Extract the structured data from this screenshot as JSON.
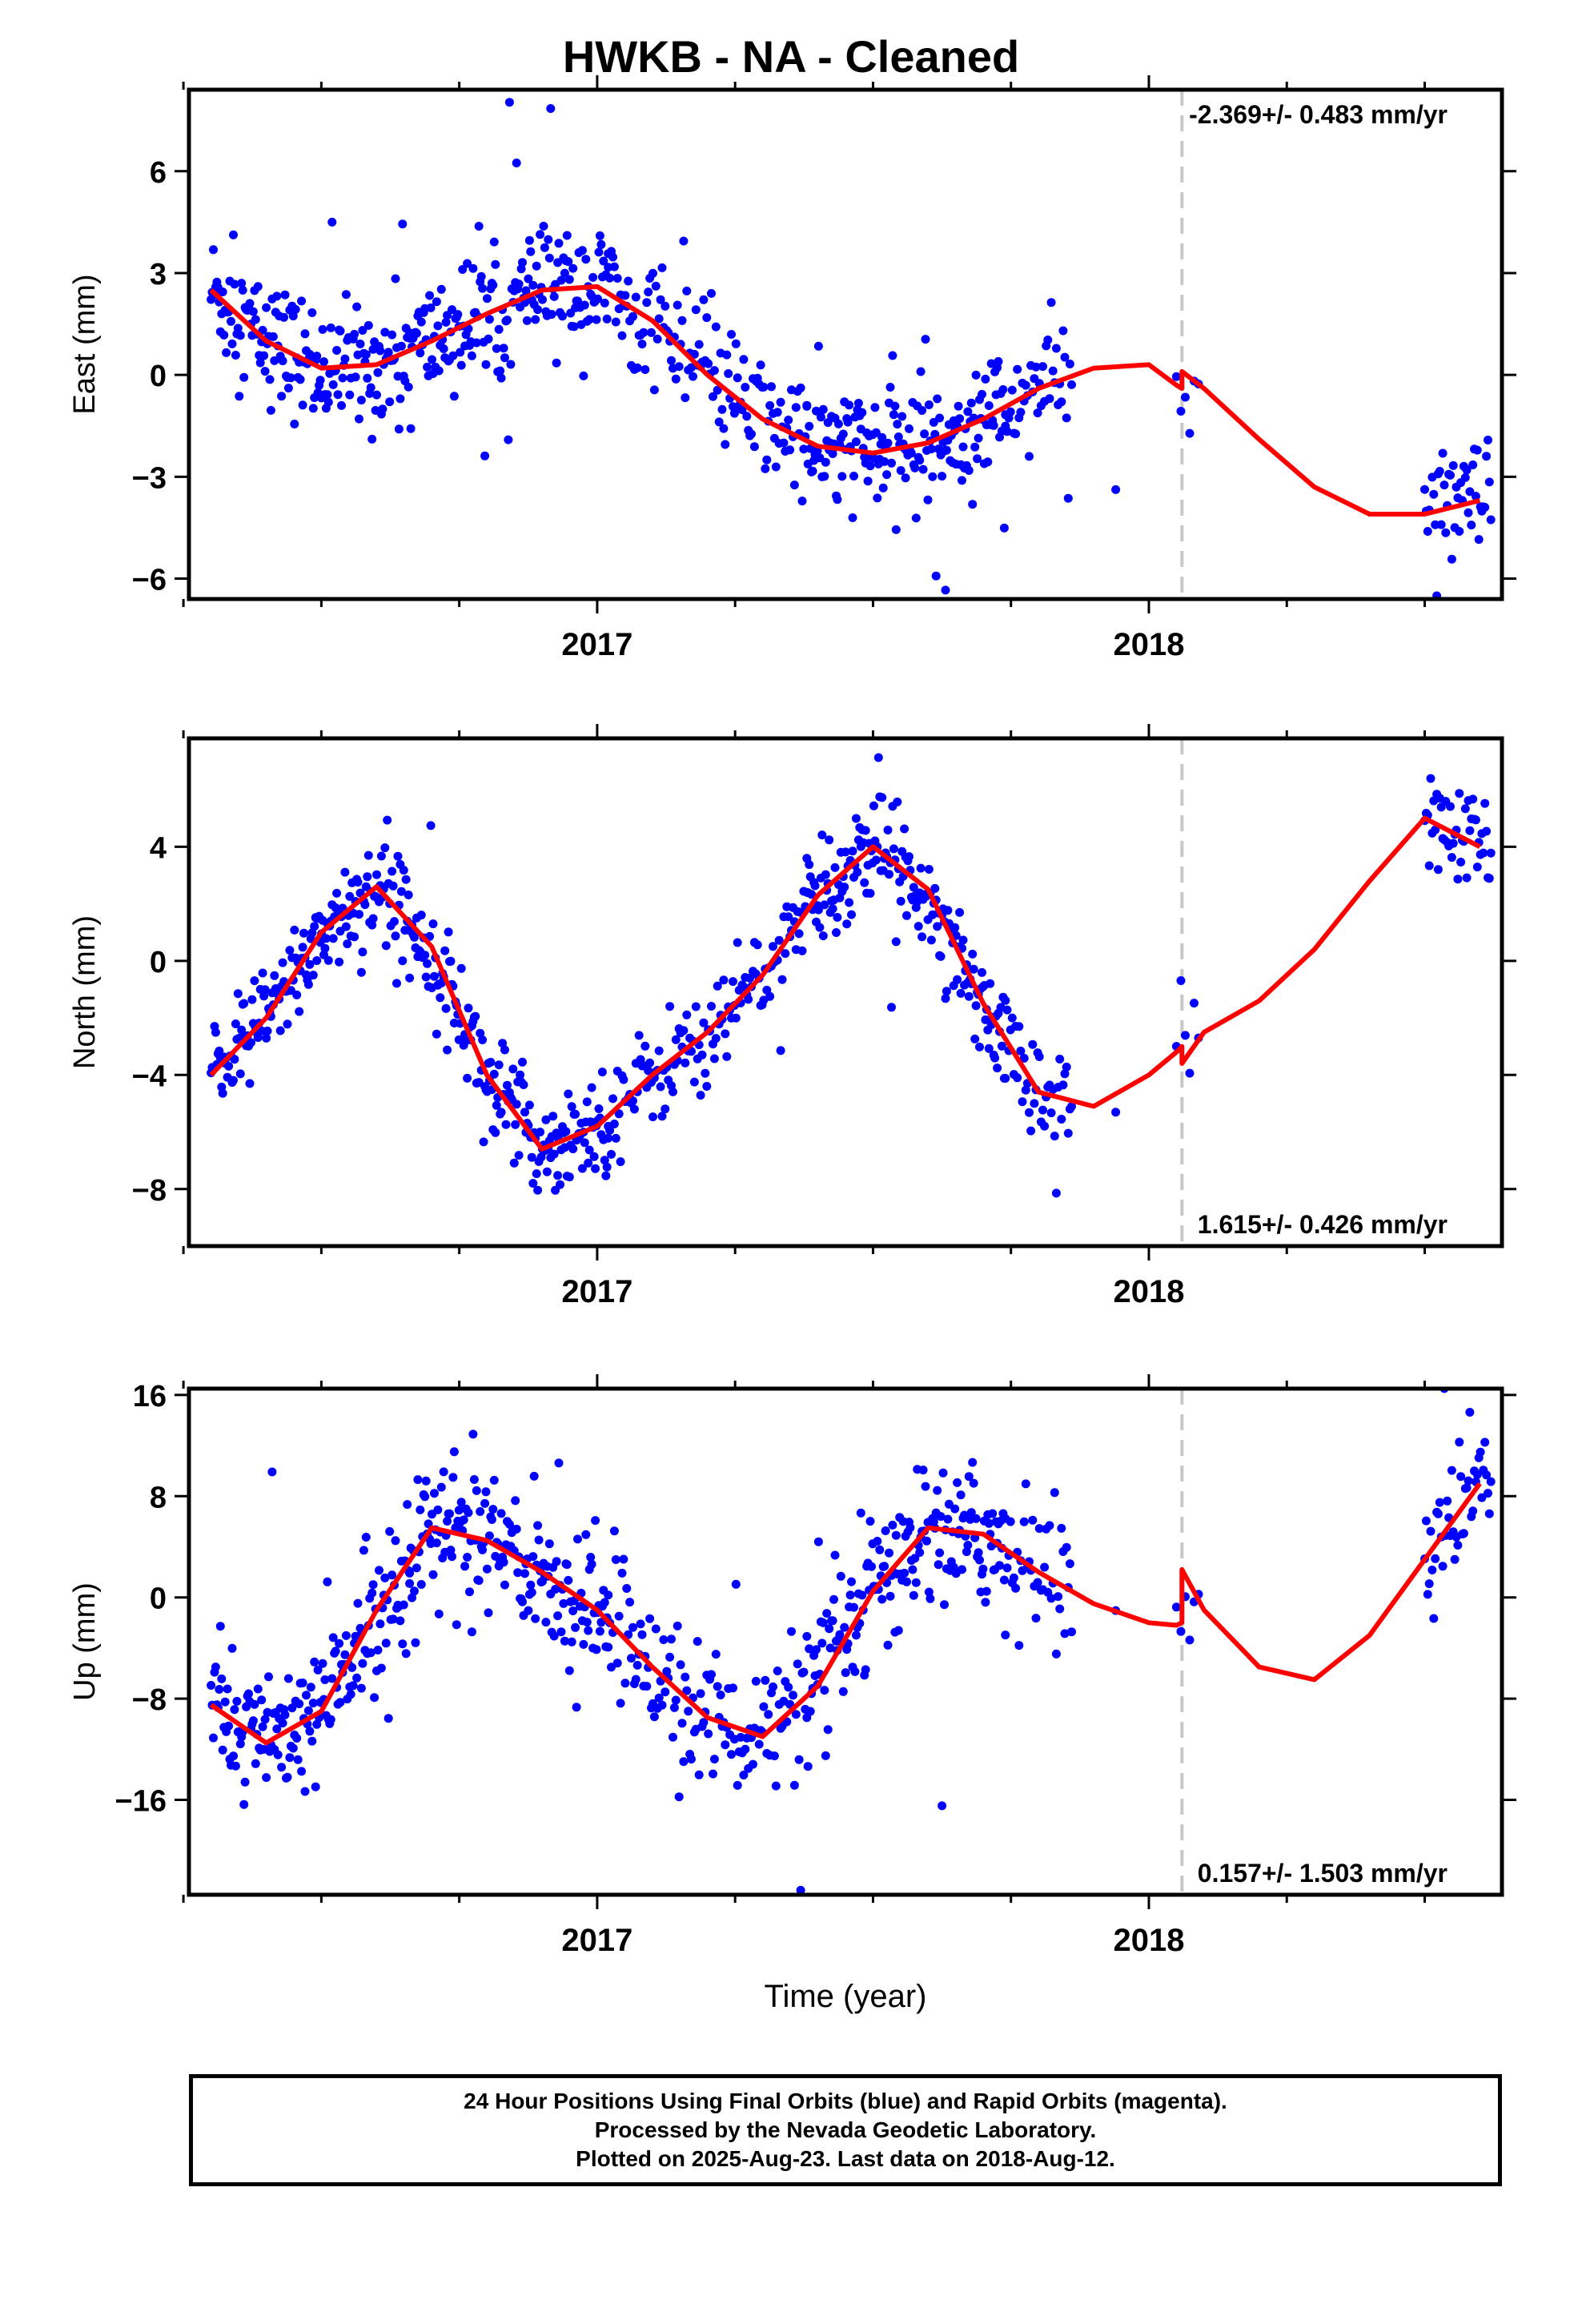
{
  "title": "HWKB  - NA - Cleaned",
  "footer": {
    "line1": "24 Hour Positions Using Final Orbits (blue) and Rapid Orbits (magenta).",
    "line2": "Processed by the Nevada Geodetic Laboratory.",
    "line3": "Plotted on 2025-Aug-23. Last data on 2018-Aug-12."
  },
  "colors": {
    "data_points": "#0000ff",
    "model_line": "#ff0000",
    "break_line": "#c8c8c8",
    "frame": "#000000"
  },
  "chart_data": [
    {
      "type": "scatter",
      "ylabel": "East (mm)",
      "xlabel": "",
      "xlim": [
        2016.26,
        2018.64
      ],
      "ylim": [
        -6.6,
        8.4
      ],
      "yticks": [
        -6,
        -3,
        0,
        3,
        6
      ],
      "xticks": [
        2017,
        2018
      ],
      "xtick_labels": [
        "2017",
        "2018"
      ],
      "break_epoch": 2018.06,
      "rate_annotation": "-2.369+/- 0.483 mm/yr",
      "rate_position": "top-right",
      "model": {
        "name": "",
        "x": [
          2016.3,
          2016.4,
          2016.5,
          2016.6,
          2016.7,
          2016.8,
          2016.9,
          2017.0,
          2017.1,
          2017.2,
          2017.3,
          2017.4,
          2017.5,
          2017.6,
          2017.7,
          2017.8,
          2017.9,
          2018.0,
          2018.05,
          2018.06,
          2018.06,
          2018.1,
          2018.2,
          2018.3,
          2018.4,
          2018.5,
          2018.6
        ],
        "y": [
          2.5,
          1.0,
          0.2,
          0.3,
          1.0,
          1.8,
          2.5,
          2.6,
          1.6,
          0.0,
          -1.3,
          -2.1,
          -2.3,
          -2.0,
          -1.3,
          -0.4,
          0.2,
          0.3,
          -0.3,
          -0.4,
          0.1,
          -0.4,
          -1.9,
          -3.3,
          -4.1,
          -4.1,
          -3.7
        ]
      },
      "segments": [
        [
          2016.3,
          2016.66
        ],
        [
          2016.66,
          2017.02
        ],
        [
          2017.02,
          2017.38
        ],
        [
          2017.38,
          2017.74
        ],
        [
          2017.74,
          2017.86
        ],
        [
          2017.92,
          2017.96
        ],
        [
          2018.05,
          2018.09
        ],
        [
          2018.5,
          2018.62
        ]
      ],
      "noise": 0.9,
      "points_per_segment": [
        170,
        170,
        130,
        170,
        40,
        1,
        6,
        45
      ]
    },
    {
      "type": "scatter",
      "ylabel": "North (mm)",
      "xlabel": "",
      "xlim": [
        2016.26,
        2018.64
      ],
      "ylim": [
        -10,
        7.8
      ],
      "yticks": [
        -8,
        -4,
        0,
        4
      ],
      "xticks": [
        2017,
        2018
      ],
      "xtick_labels": [
        "2017",
        "2018"
      ],
      "break_epoch": 2018.06,
      "rate_annotation": "1.615+/- 0.426 mm/yr",
      "rate_position": "bottom-right",
      "model": {
        "name": "",
        "x": [
          2016.3,
          2016.4,
          2016.5,
          2016.6,
          2016.7,
          2016.8,
          2016.9,
          2017.0,
          2017.1,
          2017.2,
          2017.3,
          2017.4,
          2017.5,
          2017.6,
          2017.7,
          2017.8,
          2017.9,
          2018.0,
          2018.05,
          2018.06,
          2018.06,
          2018.1,
          2018.2,
          2018.3,
          2018.4,
          2018.5,
          2018.6
        ],
        "y": [
          -4.0,
          -2.0,
          1.0,
          2.6,
          0.5,
          -4.0,
          -6.6,
          -5.8,
          -4.0,
          -2.5,
          -0.5,
          2.3,
          4.0,
          2.5,
          -1.5,
          -4.6,
          -5.1,
          -4.0,
          -3.2,
          -3.0,
          -3.6,
          -2.5,
          -1.4,
          0.4,
          2.8,
          5.0,
          4.0
        ]
      },
      "segments": [
        [
          2016.3,
          2016.66
        ],
        [
          2016.66,
          2017.02
        ],
        [
          2017.02,
          2017.38
        ],
        [
          2017.38,
          2017.74
        ],
        [
          2017.74,
          2017.86
        ],
        [
          2017.92,
          2017.96
        ],
        [
          2018.05,
          2018.09
        ],
        [
          2018.5,
          2018.62
        ]
      ],
      "noise": 0.9,
      "points_per_segment": [
        170,
        170,
        130,
        170,
        40,
        1,
        6,
        45
      ]
    },
    {
      "type": "scatter",
      "ylabel": "Up (mm)",
      "xlabel": "Time (year)",
      "xlim": [
        2016.26,
        2018.64
      ],
      "ylim": [
        -23.5,
        16.5
      ],
      "yticks": [
        -16,
        -8,
        0,
        8,
        16
      ],
      "xticks": [
        2017,
        2018
      ],
      "xtick_labels": [
        "2017",
        "2018"
      ],
      "break_epoch": 2018.06,
      "rate_annotation": "0.157+/- 1.503 mm/yr",
      "rate_position": "bottom-right",
      "model": {
        "name": "",
        "x": [
          2016.3,
          2016.4,
          2016.5,
          2016.6,
          2016.7,
          2016.8,
          2016.9,
          2017.0,
          2017.1,
          2017.2,
          2017.3,
          2017.4,
          2017.5,
          2017.6,
          2017.7,
          2017.8,
          2017.9,
          2018.0,
          2018.05,
          2018.06,
          2018.06,
          2018.1,
          2018.2,
          2018.3,
          2018.4,
          2018.5,
          2018.6
        ],
        "y": [
          -8.5,
          -11.5,
          -9.0,
          -1.0,
          5.5,
          4.5,
          2.0,
          -1.0,
          -5.5,
          -9.5,
          -11.0,
          -7.0,
          0.5,
          5.5,
          5.0,
          2.0,
          -0.5,
          -2.0,
          -2.2,
          -2.0,
          2.2,
          -1.0,
          -5.5,
          -6.5,
          -3.0,
          3.0,
          9.0
        ]
      },
      "segments": [
        [
          2016.3,
          2016.66
        ],
        [
          2016.66,
          2017.02
        ],
        [
          2017.02,
          2017.38
        ],
        [
          2017.38,
          2017.74
        ],
        [
          2017.74,
          2017.86
        ],
        [
          2017.92,
          2017.96
        ],
        [
          2018.05,
          2018.09
        ],
        [
          2018.5,
          2018.62
        ]
      ],
      "noise": 2.8,
      "points_per_segment": [
        170,
        170,
        130,
        170,
        40,
        1,
        6,
        45
      ]
    }
  ]
}
